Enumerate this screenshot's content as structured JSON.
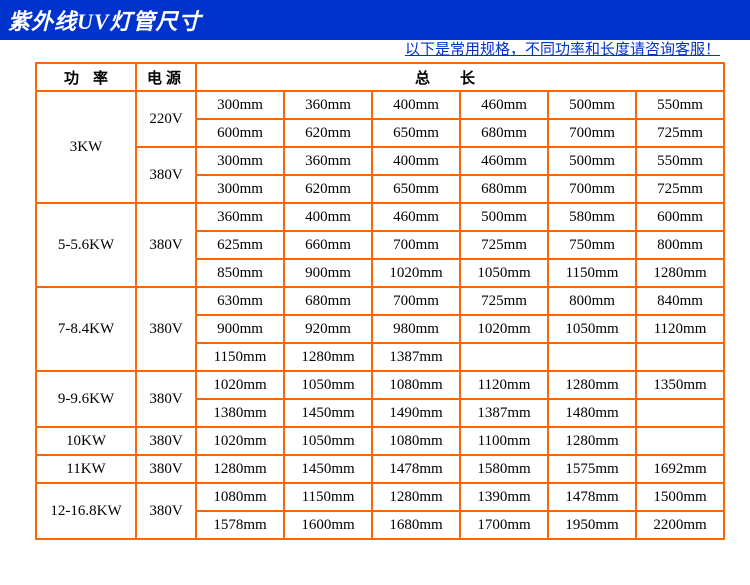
{
  "header": {
    "title": "紫外线UV灯管尺寸",
    "note": "以下是常用规格，不同功率和长度请咨询客服！"
  },
  "table": {
    "columns": {
      "power": "功率",
      "voltage": "电源",
      "length": "总长"
    },
    "groups": [
      {
        "power": "3KW",
        "voltBlocks": [
          {
            "voltage": "220V",
            "rows": [
              [
                "300mm",
                "360mm",
                "400mm",
                "460mm",
                "500mm",
                "550mm"
              ],
              [
                "600mm",
                "620mm",
                "650mm",
                "680mm",
                "700mm",
                "725mm"
              ]
            ]
          },
          {
            "voltage": "380V",
            "rows": [
              [
                "300mm",
                "360mm",
                "400mm",
                "460mm",
                "500mm",
                "550mm"
              ],
              [
                "300mm",
                "620mm",
                "650mm",
                "680mm",
                "700mm",
                "725mm"
              ]
            ]
          }
        ]
      },
      {
        "power": "5-5.6KW",
        "voltBlocks": [
          {
            "voltage": "380V",
            "rows": [
              [
                "360mm",
                "400mm",
                "460mm",
                "500mm",
                "580mm",
                "600mm"
              ],
              [
                "625mm",
                "660mm",
                "700mm",
                "725mm",
                "750mm",
                "800mm"
              ],
              [
                "850mm",
                "900mm",
                "1020mm",
                "1050mm",
                "1150mm",
                "1280mm"
              ]
            ]
          }
        ]
      },
      {
        "power": "7-8.4KW",
        "voltBlocks": [
          {
            "voltage": "380V",
            "rows": [
              [
                "630mm",
                "680mm",
                "700mm",
                "725mm",
                "800mm",
                "840mm"
              ],
              [
                "900mm",
                "920mm",
                "980mm",
                "1020mm",
                "1050mm",
                "1120mm"
              ],
              [
                "1150mm",
                "1280mm",
                "1387mm",
                "",
                "",
                ""
              ]
            ]
          }
        ]
      },
      {
        "power": "9-9.6KW",
        "voltBlocks": [
          {
            "voltage": "380V",
            "rows": [
              [
                "1020mm",
                "1050mm",
                "1080mm",
                "1120mm",
                "1280mm",
                "1350mm"
              ],
              [
                "1380mm",
                "1450mm",
                "1490mm",
                "1387mm",
                "1480mm",
                ""
              ]
            ]
          }
        ]
      },
      {
        "power": "10KW",
        "voltBlocks": [
          {
            "voltage": "380V",
            "rows": [
              [
                "1020mm",
                "1050mm",
                "1080mm",
                "1100mm",
                "1280mm",
                ""
              ]
            ]
          }
        ]
      },
      {
        "power": "11KW",
        "voltBlocks": [
          {
            "voltage": "380V",
            "rows": [
              [
                "1280mm",
                "1450mm",
                "1478mm",
                "1580mm",
                "1575mm",
                "1692mm"
              ]
            ]
          }
        ]
      },
      {
        "power": "12-16.8KW",
        "voltBlocks": [
          {
            "voltage": "380V",
            "rows": [
              [
                "1080mm",
                "1150mm",
                "1280mm",
                "1390mm",
                "1478mm",
                "1500mm"
              ],
              [
                "1578mm",
                "1600mm",
                "1680mm",
                "1700mm",
                "1950mm",
                "2200mm"
              ]
            ]
          }
        ]
      }
    ]
  },
  "style": {
    "header_bg": "#0033cc",
    "header_fg": "#ffffff",
    "border_color": "#ff6600",
    "note_color": "#0033cc",
    "cell_text_color": "#000000"
  }
}
